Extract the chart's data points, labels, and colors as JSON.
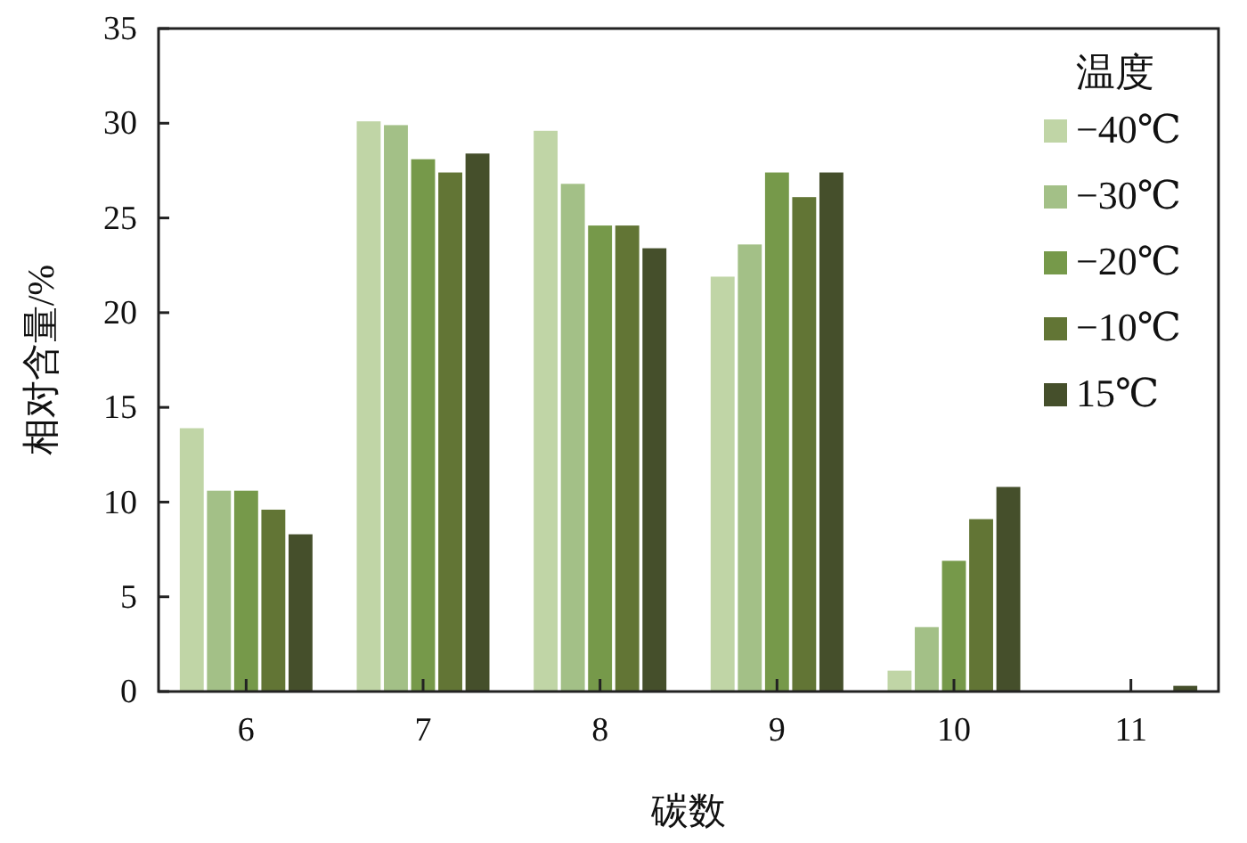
{
  "chart_data": {
    "type": "bar",
    "xlabel": "碳数",
    "ylabel": "相对含量/%",
    "legend_title": "温度",
    "categories": [
      "6",
      "7",
      "8",
      "9",
      "10",
      "11"
    ],
    "series": [
      {
        "name": "−40℃",
        "color": "#c0d5a6",
        "values": [
          13.9,
          30.1,
          29.6,
          21.9,
          1.1,
          0
        ]
      },
      {
        "name": "−30℃",
        "color": "#a3c087",
        "values": [
          10.6,
          29.9,
          26.8,
          23.6,
          3.4,
          0
        ]
      },
      {
        "name": "−20℃",
        "color": "#76994a",
        "values": [
          10.6,
          28.1,
          24.6,
          27.4,
          6.9,
          0
        ]
      },
      {
        "name": "−10℃",
        "color": "#627535",
        "values": [
          9.6,
          27.4,
          24.6,
          26.1,
          9.1,
          0
        ]
      },
      {
        "name": "15℃",
        "color": "#454f2b",
        "values": [
          8.3,
          28.4,
          23.4,
          27.4,
          10.8,
          0.3
        ]
      }
    ],
    "ylim": [
      0,
      35
    ],
    "yticks": [
      0,
      5,
      10,
      15,
      20,
      25,
      30,
      35
    ],
    "grid": false,
    "legend": "top right"
  }
}
